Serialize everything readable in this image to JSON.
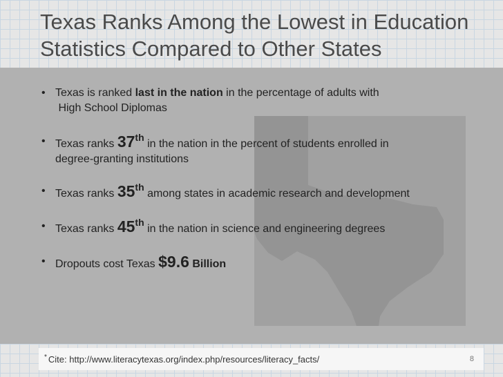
{
  "title": {
    "line1": "Texas Ranks Among the Lowest in Education",
    "line2": "Statistics Compared to Other States"
  },
  "bullets": [
    {
      "pre": "Texas is ranked ",
      "bold": "last in the nation",
      "post": " in the percentage of adults with",
      "line2": " High School Diplomas"
    },
    {
      "pre": "Texas ranks ",
      "rank": "37",
      "suffix": "th",
      "post": " in the nation in the percent of students enrolled in",
      "line2": "degree-granting institutions"
    },
    {
      "pre": "Texas ranks ",
      "rank": "35",
      "suffix": "th",
      "post": " among states in academic research and development"
    },
    {
      "pre": "Texas ranks ",
      "rank": "45",
      "suffix": "th",
      "post": " in the nation in science and engineering degrees"
    },
    {
      "pre": "Dropouts cost Texas ",
      "amount": "$9.6",
      "unit": " Billion"
    }
  ],
  "bullet_glyph": "•",
  "footer": {
    "cite_marker": "*",
    "cite": "Cite: http://www.literacytexas.org/index.php/resources/literacy_facts/",
    "page_number": "8"
  },
  "colors": {
    "background": "#b3b3b3",
    "map_shape": "#a1a1a1",
    "texas_outline": "#949494",
    "grid_line": "#c9d6e2",
    "title_text": "#4a4a4a"
  }
}
